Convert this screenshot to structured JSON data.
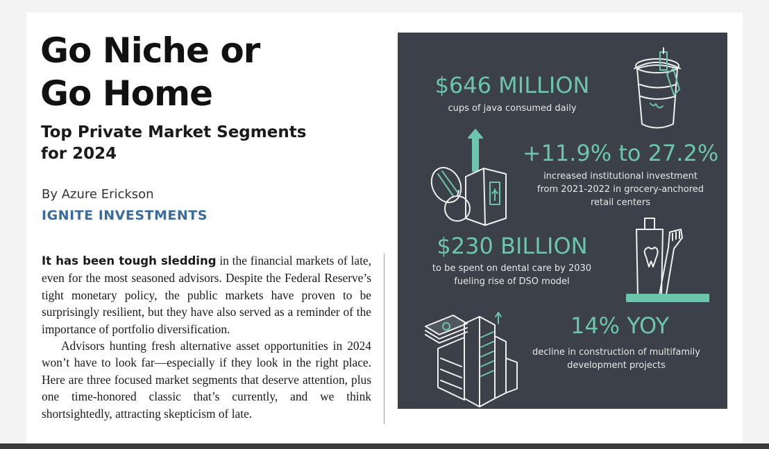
{
  "article": {
    "title_line1": "Go Niche or",
    "title_line2": "Go Home",
    "subtitle": "Top Private Market Segments for 2024",
    "byline": "By Azure Erickson",
    "company": "IGNITE INVESTMENTS",
    "para1_lead": "It has been tough sledding",
    "para1_rest": " in the financial markets of late, even for the most seasoned advisors. Despite the Federal Reserve’s tight monetary policy, the public markets have proven to be surprisingly resilient, but they have also served as a reminder of the importance of portfolio diversification.",
    "para2": "Advisors hunting fresh alternative asset opportunities in 2024 won’t have to look far—especially if they look in the right place. Here are three focused market segments that deserve attention, plus one time-honored classic that’s currently, and we think shortsightedly, attracting skepticism of late."
  },
  "infographic": {
    "colors": {
      "panel": "#3b4049",
      "accent": "#6cc5ad",
      "text": "#e8e8e8"
    },
    "stats": [
      {
        "value": "$646 MILLION",
        "description": "cups of java consumed daily",
        "icon": "coffee-cup-icon"
      },
      {
        "value": "+11.9% to 27.2%",
        "description": "increased institutional investment from 2021-2022 in grocery-anchored retail centers",
        "icon": "grocery-icon"
      },
      {
        "value": "$230 BILLION",
        "description": "to be spent on dental care by 2030 fueling rise of DSO model",
        "icon": "toothpaste-icon"
      },
      {
        "value": "14% YOY",
        "description": "decline in construction of multifamily development projects",
        "icon": "buildings-icon"
      }
    ]
  }
}
